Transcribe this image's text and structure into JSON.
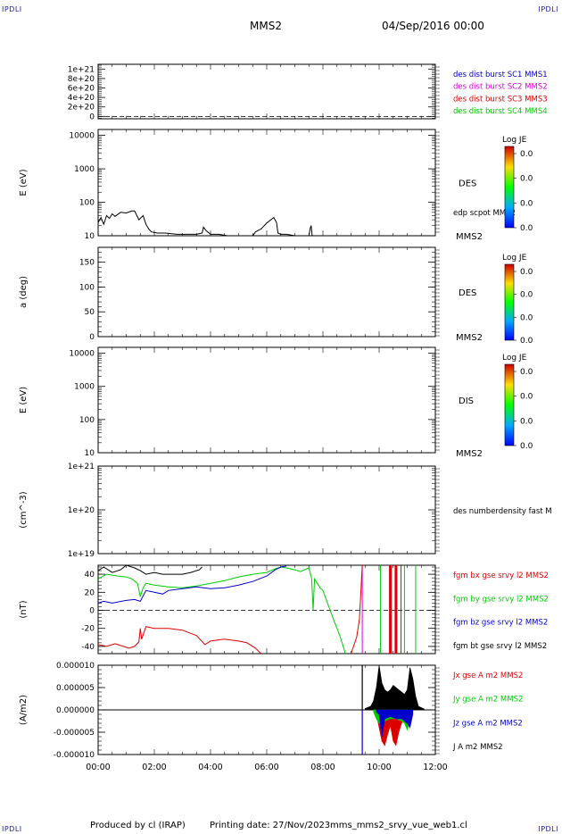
{
  "header": {
    "corner_label": "IPDLI",
    "spacecraft": "MMS2",
    "date_time": "04/Sep/2016 00:00"
  },
  "footer": {
    "produced_by": "Produced by cl (IRAP)",
    "printing_date": "Printing date: 27/Nov/2023",
    "file_name": "mms_mms2_srvy_vue_web1.cl"
  },
  "colors": {
    "blue": "#0000cc",
    "magenta": "#dd00dd",
    "red": "#dd0000",
    "green": "#00cc00",
    "black": "#000000"
  },
  "chart_data": [
    {
      "type": "line",
      "panel": "des_dist_burst",
      "yticks": [
        {
          "v": 0,
          "label": "0"
        },
        {
          "v": 2e+20,
          "label": "2e+20"
        },
        {
          "v": 4e+20,
          "label": "4e+20"
        },
        {
          "v": 6e+20,
          "label": "6e+20"
        },
        {
          "v": 8e+20,
          "label": "8e+20"
        },
        {
          "v": 1e+21,
          "label": "1e+21"
        }
      ],
      "ylim": [
        -5e+19,
        1.1e+21
      ],
      "dashed_zero": true,
      "legend": [
        {
          "name": "des dist burst SC1 MMS1",
          "color": "#0000cc"
        },
        {
          "name": "des dist burst SC2 MMS2",
          "color": "#dd00dd"
        },
        {
          "name": "des dist burst SC3 MMS3",
          "color": "#dd0000"
        },
        {
          "name": "des dist burst SC4 MMS4",
          "color": "#00cc00"
        }
      ]
    },
    {
      "type": "line",
      "panel": "des_energy",
      "ylabel": "E (eV)",
      "log": true,
      "ylim": [
        10,
        15000
      ],
      "yticks": [
        {
          "v": 10,
          "label": "10"
        },
        {
          "v": 100,
          "label": "100"
        },
        {
          "v": 1000,
          "label": "1000"
        },
        {
          "v": 10000,
          "label": "10000"
        }
      ],
      "side_label": "DES",
      "series_label": "edp scpot MMS2",
      "bottom_label": "MMS2",
      "colorbar": {
        "title": "Log JE",
        "ticks": [
          "0.0",
          "0.0",
          "0.0",
          "0.0"
        ]
      },
      "series": [
        {
          "name": "edp scpot MMS2",
          "color": "#000000",
          "x": [
            0.0,
            0.1,
            0.2,
            0.3,
            0.4,
            0.5,
            0.6,
            0.8,
            1.0,
            1.2,
            1.3,
            1.45,
            1.6,
            1.7,
            1.8,
            1.9,
            2.1,
            2.4,
            2.8,
            3.2,
            3.5,
            3.7,
            3.75,
            3.85,
            4.0,
            4.3,
            4.6,
            5.0,
            5.5,
            5.6,
            5.8,
            6.0,
            6.15,
            6.25,
            6.35,
            6.4,
            6.5,
            6.7,
            7.0,
            7.3,
            7.5,
            7.55,
            7.58,
            7.62
          ],
          "y": [
            25,
            35,
            22,
            40,
            33,
            45,
            38,
            50,
            48,
            55,
            55,
            30,
            40,
            22,
            16,
            13,
            12,
            12,
            11,
            11,
            11,
            12,
            18,
            14,
            11,
            11,
            10,
            10,
            10,
            13,
            16,
            24,
            30,
            35,
            25,
            12,
            11,
            11,
            10,
            10,
            10,
            17,
            20,
            10
          ]
        }
      ]
    },
    {
      "type": "heatmap",
      "panel": "des_pitch",
      "ylabel": "a (deg)",
      "ylim": [
        0,
        180
      ],
      "yticks": [
        {
          "v": 0,
          "label": "0"
        },
        {
          "v": 50,
          "label": "50"
        },
        {
          "v": 100,
          "label": "100"
        },
        {
          "v": 150,
          "label": "150"
        }
      ],
      "side_label": "DES",
      "bottom_label": "MMS2",
      "colorbar": {
        "title": "Log JE",
        "ticks": [
          "0.0",
          "0.0",
          "0.0",
          "0.0"
        ]
      }
    },
    {
      "type": "heatmap",
      "panel": "dis_energy",
      "ylabel": "E (eV)",
      "log": true,
      "ylim": [
        10,
        15000
      ],
      "yticks": [
        {
          "v": 10,
          "label": "10"
        },
        {
          "v": 100,
          "label": "100"
        },
        {
          "v": 1000,
          "label": "1000"
        },
        {
          "v": 10000,
          "label": "10000"
        }
      ],
      "side_label": "DIS",
      "bottom_label": "MMS2",
      "colorbar": {
        "title": "Log JE",
        "ticks": [
          "0.0",
          "0.0",
          "0.0",
          "0.0"
        ]
      }
    },
    {
      "type": "line",
      "panel": "density",
      "ylabel": "(cm^-3)",
      "log": true,
      "ylim": [
        1e+19,
        1e+21
      ],
      "yticks": [
        {
          "v": 1e+19,
          "label": "1e+19"
        },
        {
          "v": 1e+20,
          "label": "1e+20"
        },
        {
          "v": 1e+21,
          "label": "1e+21"
        }
      ],
      "series_label": "des numberdensity fast M"
    },
    {
      "type": "line",
      "panel": "fgm",
      "ylabel": "(nT)",
      "ylim": [
        -48,
        50
      ],
      "yticks": [
        {
          "v": -40,
          "label": "-40"
        },
        {
          "v": -20,
          "label": "-20"
        },
        {
          "v": 0,
          "label": "0"
        },
        {
          "v": 20,
          "label": "20"
        },
        {
          "v": 40,
          "label": "40"
        }
      ],
      "dashed_zero": true,
      "legend": [
        {
          "name": "fgm bx gse srvy l2 MMS2",
          "color": "#dd0000"
        },
        {
          "name": "fgm by gse srvy l2 MMS2",
          "color": "#00cc00"
        },
        {
          "name": "fgm bz gse srvy l2 MMS2",
          "color": "#0000cc"
        },
        {
          "name": "fgm bt gse srvy l2 MMS2",
          "color": "#000000"
        }
      ],
      "series": [
        {
          "name": "fgm bt gse srvy l2 MMS2",
          "color": "#000000",
          "x": [
            0.0,
            0.2,
            0.5,
            0.8,
            1.0,
            1.3,
            1.5,
            1.7,
            2.0,
            2.3,
            2.7,
            3.0,
            3.3,
            3.6,
            3.7
          ],
          "y": [
            44,
            48,
            42,
            45,
            50,
            47,
            44,
            40,
            42,
            40,
            40,
            40,
            42,
            45,
            48
          ]
        },
        {
          "name": "fgm by gse srvy l2 MMS2",
          "color": "#00cc00",
          "x": [
            0.0,
            0.3,
            0.7,
            1.0,
            1.2,
            1.4,
            1.5,
            1.6,
            1.7,
            2.0,
            2.5,
            3.0,
            3.5,
            4.0,
            4.5,
            5.0,
            5.5,
            6.0,
            6.3,
            6.5,
            6.7,
            7.0,
            7.2,
            7.5,
            7.6,
            7.65,
            7.7,
            7.8,
            7.9,
            8.0,
            8.2,
            8.4,
            8.6,
            8.7,
            8.8
          ],
          "y": [
            35,
            40,
            38,
            37,
            35,
            30,
            15,
            25,
            30,
            28,
            26,
            25,
            27,
            30,
            33,
            37,
            40,
            42,
            46,
            48,
            47,
            45,
            43,
            47,
            35,
            0,
            35,
            30,
            25,
            22,
            5,
            -12,
            -28,
            -38,
            -48
          ]
        },
        {
          "name": "fgm bz gse srvy l2 MMS2",
          "color": "#0000cc",
          "x": [
            0.0,
            0.2,
            0.5,
            1.0,
            1.3,
            1.5,
            1.7,
            2.0,
            2.3,
            2.5,
            3.0,
            3.5,
            4.0,
            4.5,
            5.0,
            5.5,
            6.0,
            6.3,
            6.5,
            6.7
          ],
          "y": [
            8,
            10,
            8,
            11,
            12,
            10,
            22,
            20,
            18,
            22,
            24,
            26,
            24,
            25,
            28,
            32,
            38,
            45,
            48,
            49
          ]
        },
        {
          "name": "fgm bx gse srvy l2 MMS2",
          "color": "#dd0000",
          "x": [
            0.0,
            0.3,
            0.6,
            0.9,
            1.1,
            1.3,
            1.45,
            1.5,
            1.55,
            1.7,
            2.0,
            2.5,
            3.0,
            3.5,
            3.8,
            4.0,
            4.5,
            5.0,
            5.3,
            5.6,
            5.8
          ],
          "y": [
            -38,
            -40,
            -37,
            -40,
            -42,
            -40,
            -35,
            -20,
            -32,
            -18,
            -20,
            -20,
            -22,
            -28,
            -38,
            -34,
            -32,
            -34,
            -36,
            -42,
            -48
          ]
        },
        {
          "name": "fgm bx gse srvy l2 MMS2",
          "color": "#dd0000",
          "x": [
            9.0,
            9.2,
            9.3,
            9.35,
            9.4
          ],
          "y": [
            -48,
            -30,
            -10,
            20,
            50
          ]
        }
      ],
      "spikes": [
        {
          "x": 9.4,
          "color": "#dd00dd",
          "w": 1
        },
        {
          "x": 10.05,
          "color": "#00cc00",
          "w": 1
        },
        {
          "x": 10.4,
          "color": "#dd0000",
          "w": 3
        },
        {
          "x": 10.6,
          "color": "#dd0000",
          "w": 3
        },
        {
          "x": 10.78,
          "color": "#dd0000",
          "w": 1
        },
        {
          "x": 10.9,
          "color": "#00cc00",
          "w": 1
        },
        {
          "x": 11.3,
          "color": "#00cc00",
          "w": 1
        }
      ]
    },
    {
      "type": "area",
      "panel": "current_density",
      "ylabel": "(A/m2)",
      "ylim": [
        -1e-05,
        1e-05
      ],
      "yticks": [
        {
          "v": -1e-05,
          "label": "-0.000010"
        },
        {
          "v": -5e-06,
          "label": "-0.000005"
        },
        {
          "v": 0,
          "label": "0.000000"
        },
        {
          "v": 5e-06,
          "label": "0.000005"
        },
        {
          "v": 1e-05,
          "label": "0.000010"
        }
      ],
      "legend": [
        {
          "name": "Jx gse A m2 MMS2",
          "color": "#dd0000"
        },
        {
          "name": "Jy gse A m2 MMS2",
          "color": "#00cc00"
        },
        {
          "name": "Jz gse A m2 MMS2",
          "color": "#0000cc"
        },
        {
          "name": "J A m2 MMS2",
          "color": "#000000"
        }
      ],
      "series": [
        {
          "name": "J A m2 MMS2",
          "color": "#000000",
          "x": [
            9.5,
            9.7,
            9.8,
            9.9,
            10.0,
            10.1,
            10.2,
            10.3,
            10.4,
            10.5,
            10.6,
            10.7,
            10.8,
            10.9,
            11.0,
            11.1,
            11.2,
            11.3,
            11.4,
            11.6
          ],
          "y": [
            3e-07,
            8e-07,
            2e-06,
            5e-06,
            1e-05,
            6e-06,
            4.5e-06,
            4e-06,
            4.5e-06,
            5.5e-06,
            5e-06,
            4.5e-06,
            4e-06,
            3.5e-06,
            4.5e-06,
            9.5e-06,
            7e-06,
            3e-06,
            8e-07,
            2e-07
          ]
        },
        {
          "name": "Jx gse A m2 MMS2",
          "color": "#dd0000",
          "x": [
            9.9,
            10.0,
            10.1,
            10.2,
            10.3,
            10.4,
            10.5,
            10.6,
            10.7,
            10.8,
            10.9,
            11.0
          ],
          "y": [
            -1e-06,
            -4e-06,
            -7e-06,
            -8e-06,
            -5.5e-06,
            -3.5e-06,
            -7e-06,
            -8e-06,
            -5e-06,
            -3e-06,
            -2e-06,
            -1e-06
          ]
        },
        {
          "name": "Jy gse A m2 MMS2",
          "color": "#00cc00",
          "x": [
            9.8,
            9.9,
            10.0,
            10.2,
            10.4,
            10.6,
            10.8,
            10.9,
            11.0,
            11.1,
            11.2
          ],
          "y": [
            -5e-07,
            -2e-06,
            -3e-06,
            -2.5e-06,
            -2e-06,
            -2e-06,
            -2.5e-06,
            -3e-06,
            -4.5e-06,
            -2.5e-06,
            -1e-06
          ]
        },
        {
          "name": "Jz gse A m2 MMS2",
          "color": "#0000cc",
          "x": [
            9.9,
            10.0,
            10.1,
            10.2,
            10.4,
            10.6,
            10.8,
            11.0,
            11.1,
            11.2
          ],
          "y": [
            -5e-07,
            -1e-06,
            -6e-06,
            -2e-06,
            -1.5e-06,
            -2e-06,
            -2e-06,
            -3e-06,
            -4e-06,
            -1e-06
          ]
        }
      ],
      "spikes": [
        {
          "x": 9.4,
          "color": "#0000cc",
          "y0": -1e-05,
          "y1": 0.0
        },
        {
          "x": 9.4,
          "color": "#000000",
          "y0": 0.0,
          "y1": 1e-05
        }
      ],
      "xticks": [
        {
          "v": 0,
          "label": "00:00"
        },
        {
          "v": 2,
          "label": "02:00"
        },
        {
          "v": 4,
          "label": "04:00"
        },
        {
          "v": 6,
          "label": "06:00"
        },
        {
          "v": 8,
          "label": "08:00"
        },
        {
          "v": 10,
          "label": "10:00"
        },
        {
          "v": 12,
          "label": "12:00"
        }
      ]
    }
  ]
}
